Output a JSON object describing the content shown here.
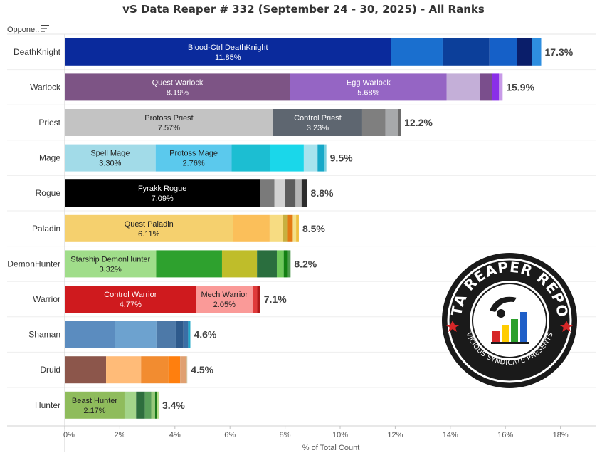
{
  "title": "vS Data Reaper # 332 (September 24 - 30, 2025) - All Ranks",
  "filter_label": "Oppone..",
  "logo": {
    "line1": "DATA REAPER REPORT",
    "line2": "VICIOUS SYNDICATE PRESENTS"
  },
  "chart_data": {
    "type": "bar",
    "orientation": "horizontal-stacked",
    "xlabel": "% of Total Count",
    "xlim": [
      0,
      18
    ],
    "x_ticks": [
      "0%",
      "2%",
      "4%",
      "6%",
      "8%",
      "10%",
      "12%",
      "14%",
      "16%",
      "18%"
    ],
    "grid": false,
    "rows": [
      {
        "category": "DeathKnight",
        "total_label": "17.3%",
        "segments": [
          {
            "label": "Blood-Ctrl DeathKnight",
            "value_label": "11.85%",
            "value": 11.85,
            "color": "#0a2a9c",
            "text": "#ffffff"
          },
          {
            "value": 1.87,
            "color": "#1a6fcf"
          },
          {
            "value": 1.7,
            "color": "#0c3f9a"
          },
          {
            "value": 1.0,
            "color": "#1560c8"
          },
          {
            "value": 0.55,
            "color": "#0a1e6a"
          },
          {
            "value": 0.33,
            "color": "#2e8ee0"
          }
        ]
      },
      {
        "category": "Warlock",
        "total_label": "15.9%",
        "segments": [
          {
            "label": "Quest Warlock",
            "value_label": "8.19%",
            "value": 8.19,
            "color": "#7d5485",
            "text": "#ffffff"
          },
          {
            "label": "Egg Warlock",
            "value_label": "5.68%",
            "value": 5.68,
            "color": "#9565c4",
            "text": "#ffffff"
          },
          {
            "value": 1.22,
            "color": "#c4afd8"
          },
          {
            "value": 0.43,
            "color": "#7a4e8c"
          },
          {
            "value": 0.25,
            "color": "#8a2fe8"
          },
          {
            "value": 0.13,
            "color": "#c89ae8"
          }
        ]
      },
      {
        "category": "Priest",
        "total_label": "12.2%",
        "segments": [
          {
            "label": "Protoss Priest",
            "value_label": "7.57%",
            "value": 7.57,
            "color": "#c3c3c3",
            "text": "#222222"
          },
          {
            "label": "Control Priest",
            "value_label": "3.23%",
            "value": 3.23,
            "color": "#5e6670",
            "text": "#ffffff"
          },
          {
            "value": 0.84,
            "color": "#7f7f7f"
          },
          {
            "value": 0.45,
            "color": "#a7a9ab"
          },
          {
            "value": 0.11,
            "color": "#6c6c6c"
          }
        ]
      },
      {
        "category": "Mage",
        "total_label": "9.5%",
        "segments": [
          {
            "label": "Spell Mage",
            "value_label": "3.30%",
            "value": 3.3,
            "color": "#a2dbe8",
            "text": "#222222"
          },
          {
            "label": "Protoss Mage",
            "value_label": "2.76%",
            "value": 2.76,
            "color": "#5bc9ed",
            "text": "#222222"
          },
          {
            "value": 1.4,
            "color": "#1cbed2"
          },
          {
            "value": 1.22,
            "color": "#1ad7ea"
          },
          {
            "value": 0.5,
            "color": "#a7e3ee"
          },
          {
            "value": 0.25,
            "color": "#16a8c8"
          },
          {
            "value": 0.07,
            "color": "#7ad0e0"
          }
        ]
      },
      {
        "category": "Rogue",
        "total_label": "8.8%",
        "segments": [
          {
            "label": "Fyrakk Rogue",
            "value_label": "7.09%",
            "value": 7.09,
            "color": "#000000",
            "text": "#ffffff"
          },
          {
            "value": 0.52,
            "color": "#7a7a7a"
          },
          {
            "value": 0.4,
            "color": "#d2d2d2"
          },
          {
            "value": 0.37,
            "color": "#5c5c5c"
          },
          {
            "value": 0.22,
            "color": "#b5b5b5"
          },
          {
            "value": 0.2,
            "color": "#2c2c2c"
          }
        ]
      },
      {
        "category": "Paladin",
        "total_label": "8.5%",
        "segments": [
          {
            "label": "Quest Paladin",
            "value_label": "6.11%",
            "value": 6.11,
            "color": "#f5d06e",
            "text": "#222222"
          },
          {
            "value": 1.33,
            "color": "#fbbf5a"
          },
          {
            "value": 0.49,
            "color": "#f7dc82"
          },
          {
            "value": 0.17,
            "color": "#c8b040"
          },
          {
            "value": 0.18,
            "color": "#e47a14"
          },
          {
            "value": 0.12,
            "color": "#f3e08a"
          },
          {
            "value": 0.1,
            "color": "#f0c040"
          }
        ]
      },
      {
        "category": "DemonHunter",
        "total_label": "8.2%",
        "segments": [
          {
            "label": "Starship DemonHunter",
            "value_label": "3.32%",
            "value": 3.32,
            "color": "#a0dd8a",
            "text": "#222222"
          },
          {
            "value": 2.39,
            "color": "#2ea12e"
          },
          {
            "value": 1.27,
            "color": "#bfbd2a"
          },
          {
            "value": 0.72,
            "color": "#2a6e3e"
          },
          {
            "value": 0.25,
            "color": "#6fc95a"
          },
          {
            "value": 0.15,
            "color": "#128012"
          },
          {
            "value": 0.1,
            "color": "#4b9a4b"
          }
        ]
      },
      {
        "category": "Warrior",
        "total_label": "7.1%",
        "segments": [
          {
            "label": "Control Warrior",
            "value_label": "4.77%",
            "value": 4.77,
            "color": "#cf1a1e",
            "text": "#ffffff"
          },
          {
            "label": "Mech Warrior",
            "value_label": "2.05%",
            "value": 2.05,
            "color": "#fa9a98",
            "text": "#222222"
          },
          {
            "value": 0.17,
            "color": "#e03a3a"
          },
          {
            "value": 0.11,
            "color": "#b01818"
          }
        ]
      },
      {
        "category": "Shaman",
        "total_label": "4.6%",
        "segments": [
          {
            "value": 1.83,
            "color": "#5b8cbf"
          },
          {
            "value": 1.5,
            "color": "#6da2cf"
          },
          {
            "value": 0.7,
            "color": "#4d79a8"
          },
          {
            "value": 0.28,
            "color": "#2e5a8c"
          },
          {
            "value": 0.17,
            "color": "#3b6ea5"
          },
          {
            "value": 0.08,
            "color": "#1fa7c8"
          }
        ]
      },
      {
        "category": "Druid",
        "total_label": "4.5%",
        "segments": [
          {
            "value": 1.5,
            "color": "#8c564b"
          },
          {
            "value": 1.27,
            "color": "#ffbb78"
          },
          {
            "value": 1.0,
            "color": "#f28c30"
          },
          {
            "value": 0.42,
            "color": "#ff7f0e"
          },
          {
            "value": 0.21,
            "color": "#e0a070"
          },
          {
            "value": 0.05,
            "color": "#d6c29e"
          }
        ]
      },
      {
        "category": "Hunter",
        "total_label": "3.4%",
        "segments": [
          {
            "label": "Beast Hunter",
            "value_label": "2.17%",
            "value": 2.17,
            "color": "#8fbc5c",
            "text": "#222222"
          },
          {
            "value": 0.42,
            "color": "#a3d48a"
          },
          {
            "value": 0.32,
            "color": "#2e6e3e"
          },
          {
            "value": 0.23,
            "color": "#5aa05a"
          },
          {
            "value": 0.14,
            "color": "#97c97a"
          },
          {
            "value": 0.08,
            "color": "#1a7a1a"
          },
          {
            "value": 0.05,
            "color": "#b8de8a"
          }
        ]
      }
    ]
  }
}
